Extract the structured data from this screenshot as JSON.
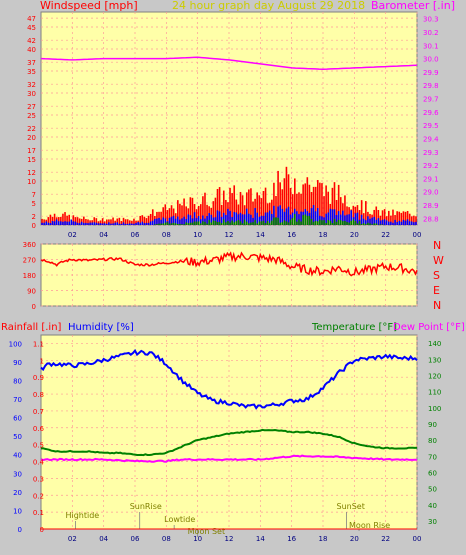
{
  "header": {
    "windspeed_label": "Windspeed [mph]",
    "date_title": "24 hour graph day   August 29 2018",
    "barometer_label": "Barometer [.in]"
  },
  "lower_header": {
    "rainfall_label": "Rainfall [.in]",
    "humidity_label": "Humidity [%]",
    "temperature_label": "Temperature [°F]",
    "dewpoint_label": "Dew Point [°F]"
  },
  "compass": [
    "N",
    "W",
    "S",
    "E",
    "N"
  ],
  "colors": {
    "plot_bg": "#ffffa8",
    "wind_gust": "#ff0000",
    "wind_avg": "#0000ff",
    "wind_low": "#008000",
    "barometer": "#ff00ff",
    "direction": "#ff0000",
    "humidity": "#0000ff",
    "temperature": "#008000",
    "dewpoint": "#ff00ff",
    "rain": "#ff0000"
  },
  "events": [
    {
      "label": "Hightide",
      "hour": 2.2
    },
    {
      "label": "SunRise",
      "hour": 6.3
    },
    {
      "label": "Lowtide",
      "hour": 8.5
    },
    {
      "label": "Moon Set",
      "hour": 10.0
    },
    {
      "label": "SunSet",
      "hour": 19.5
    },
    {
      "label": "Moon Rise",
      "hour": 20.3
    }
  ],
  "chart_data": [
    {
      "type": "bar",
      "name": "wind",
      "title": "24 hour graph day   August 29 2018",
      "ylabel": "Windspeed [mph]",
      "y2label": "Barometer [.in]",
      "x_ticks": [
        "02",
        "04",
        "06",
        "08",
        "10",
        "12",
        "14",
        "16",
        "18",
        "20",
        "22",
        "00"
      ],
      "y_ticks": [
        0,
        2,
        5,
        7,
        10,
        12,
        15,
        17,
        20,
        22,
        25,
        27,
        30,
        32,
        35,
        37,
        40,
        42,
        45,
        47
      ],
      "y2_ticks": [
        28.8,
        28.9,
        29.0,
        29.1,
        29.2,
        29.3,
        29.4,
        29.5,
        29.6,
        29.7,
        29.8,
        29.9,
        30.0,
        30.1,
        30.2,
        30.3
      ],
      "ylim": [
        0,
        48.4
      ],
      "y2lim": [
        28.75,
        30.35
      ],
      "series": [
        {
          "name": "gust",
          "x": [
            0,
            1,
            2,
            3,
            4,
            5,
            6,
            7,
            8,
            9,
            10,
            11,
            12,
            13,
            14,
            15,
            16,
            17,
            18,
            19,
            20,
            21,
            22,
            23,
            24
          ],
          "values": [
            1.5,
            3,
            2,
            1.5,
            1.5,
            1.5,
            1.5,
            3,
            4,
            5,
            6,
            7,
            8,
            7,
            8,
            10,
            12,
            11,
            9,
            8,
            6,
            4,
            3,
            3,
            3
          ]
        },
        {
          "name": "average",
          "x": [
            0,
            1,
            2,
            3,
            4,
            5,
            6,
            7,
            8,
            9,
            10,
            11,
            12,
            13,
            14,
            15,
            16,
            17,
            18,
            19,
            20,
            21,
            22,
            23,
            24
          ],
          "values": [
            0.5,
            1,
            1,
            0.5,
            0.5,
            0.5,
            0.5,
            1,
            1.5,
            2,
            2.5,
            2.5,
            3,
            3,
            3,
            3.5,
            4,
            4,
            3.5,
            3,
            2.5,
            2,
            1,
            1,
            1
          ]
        },
        {
          "name": "low",
          "x": [
            0,
            1,
            2,
            3,
            4,
            5,
            6,
            7,
            8,
            9,
            10,
            11,
            12,
            13,
            14,
            15,
            16,
            17,
            18,
            19,
            20,
            21,
            22,
            23,
            24
          ],
          "values": [
            0,
            0,
            0,
            0,
            0,
            0,
            0,
            0,
            0.5,
            0.5,
            1,
            1,
            1,
            1,
            1,
            1.5,
            2,
            2,
            1.5,
            1,
            1,
            0.5,
            0,
            0,
            0
          ]
        },
        {
          "name": "barometer",
          "x": [
            0,
            2,
            4,
            6,
            8,
            10,
            12,
            14,
            16,
            18,
            20,
            22,
            24
          ],
          "values": [
            30.0,
            29.99,
            30.0,
            30.0,
            30.0,
            30.01,
            29.99,
            29.96,
            29.93,
            29.92,
            29.93,
            29.94,
            29.95
          ]
        }
      ]
    },
    {
      "type": "line",
      "name": "wind-direction",
      "y_ticks": [
        0,
        90,
        180,
        270,
        360
      ],
      "ylim": [
        0,
        360
      ],
      "series": [
        {
          "name": "direction",
          "x": [
            0,
            0.5,
            1,
            1.5,
            2,
            3,
            4,
            5,
            6,
            7,
            8,
            9,
            10,
            11,
            12,
            13,
            14,
            15,
            16,
            17,
            18,
            19,
            20,
            21,
            22,
            23,
            24
          ],
          "values": [
            270,
            260,
            240,
            260,
            270,
            265,
            270,
            275,
            240,
            240,
            250,
            260,
            255,
            265,
            285,
            290,
            280,
            270,
            230,
            210,
            200,
            220,
            195,
            210,
            230,
            220,
            200
          ]
        }
      ]
    },
    {
      "type": "line",
      "name": "climate",
      "rain_ticks": [
        0,
        0.1,
        0.2,
        0.3,
        0.4,
        0.5,
        0.6,
        0.7,
        0.8,
        0.9,
        1,
        1.1
      ],
      "humidity_ticks": [
        0,
        10,
        20,
        30,
        40,
        50,
        60,
        70,
        80,
        90,
        100
      ],
      "temperature_ticks": [
        30,
        40,
        50,
        60,
        70,
        80,
        90,
        100,
        110,
        120,
        130,
        140
      ],
      "rain_lim": [
        0,
        1.15
      ],
      "humidity_lim": [
        0,
        104.5
      ],
      "temperature_lim": [
        25,
        145
      ],
      "series": [
        {
          "name": "humidity",
          "x": [
            0,
            0.5,
            1,
            2,
            3,
            4,
            5,
            6,
            7,
            8,
            9,
            10,
            11,
            12,
            13,
            14,
            15,
            16,
            17,
            18,
            19,
            20,
            21,
            22,
            23,
            24
          ],
          "values": [
            86,
            89,
            89,
            88,
            89,
            91,
            93,
            95,
            95,
            89,
            80,
            73,
            69,
            68,
            66,
            66,
            67,
            69,
            70,
            76,
            84,
            91,
            92,
            93,
            92,
            92
          ]
        },
        {
          "name": "temperature",
          "x": [
            0,
            1,
            2,
            3,
            4,
            5,
            6,
            7,
            8,
            9,
            10,
            11,
            12,
            13,
            14,
            15,
            16,
            17,
            18,
            19,
            20,
            21,
            22,
            23,
            24
          ],
          "values": [
            75,
            73,
            73,
            73,
            72,
            72,
            71,
            71,
            72,
            76,
            80,
            82,
            84,
            85,
            86,
            86,
            85,
            85,
            84,
            82,
            78,
            76,
            75,
            75,
            75
          ]
        },
        {
          "name": "dewpoint",
          "x": [
            0,
            2,
            4,
            6,
            8,
            9,
            10,
            12,
            14,
            16,
            18,
            20,
            22,
            24
          ],
          "values": [
            68,
            68,
            68,
            67,
            67,
            68,
            68,
            68,
            68,
            70,
            70,
            69,
            68,
            68
          ]
        },
        {
          "name": "rainfall",
          "x": [
            0,
            24
          ],
          "values": [
            0,
            0
          ]
        }
      ]
    }
  ]
}
